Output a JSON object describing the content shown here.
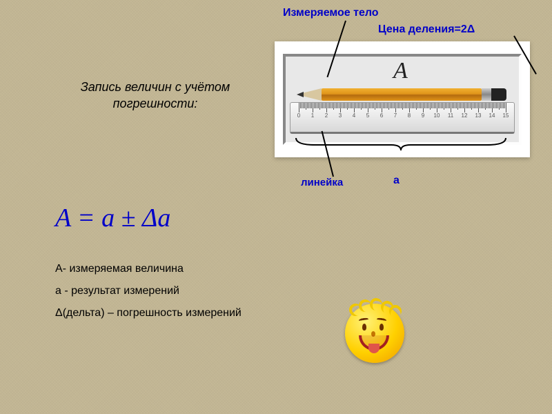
{
  "labels": {
    "measured_body": "Измеряемое тело",
    "division_price": "Цена деления=2Δ",
    "ruler": "линейка",
    "a": "а"
  },
  "heading": "Запись величин с учётом погрешности:",
  "formula": "A = a ± Δa",
  "legend": {
    "line1": "А- измеряемая величина",
    "line2": "а - результат измерений",
    "line3": "Δ(дельта) – погрешность измерений"
  },
  "illustration": {
    "big_label": "A",
    "ruler": {
      "major_ticks": [
        0,
        1,
        2,
        3,
        4,
        5,
        6,
        7,
        8,
        9,
        10,
        11,
        12,
        13,
        14,
        15
      ],
      "minor_per_major": 10,
      "tick_color": "#555555",
      "number_fontsize": 8
    },
    "pencil_colors": {
      "body": "#e0941a",
      "tip": "#d8c7a0",
      "lead": "#333333",
      "ferrule": "#aaaaaa",
      "eraser": "#222222"
    }
  },
  "colors": {
    "accent": "#0000c8",
    "background": "#c4b896",
    "text": "#000000"
  },
  "typography": {
    "heading_fontsize": 18,
    "formula_fontsize": 38,
    "label_fontsize": 16,
    "legend_fontsize": 16
  }
}
